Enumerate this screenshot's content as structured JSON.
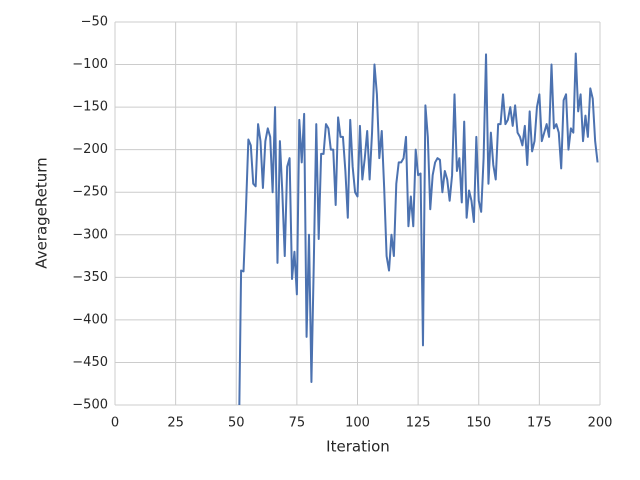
{
  "chart_data": {
    "type": "line",
    "xlabel": "Iteration",
    "ylabel": "AverageReturn",
    "xlim": [
      0,
      200
    ],
    "xticks": [
      0,
      25,
      50,
      75,
      100,
      125,
      150,
      175,
      200
    ],
    "ylim": [
      -500,
      -50
    ],
    "yticks": [
      {
        "value": -500,
        "label": "−500"
      },
      {
        "value": -450,
        "label": "−450"
      },
      {
        "value": -400,
        "label": "−400"
      },
      {
        "value": -350,
        "label": "−350"
      },
      {
        "value": -300,
        "label": "−300"
      },
      {
        "value": -250,
        "label": "−250"
      },
      {
        "value": -200,
        "label": "−200"
      },
      {
        "value": -150,
        "label": "−150"
      },
      {
        "value": -100,
        "label": "−100"
      },
      {
        "value": -50,
        "label": "−50"
      }
    ],
    "grid": true,
    "x": [
      51,
      52,
      53,
      54,
      55,
      56,
      57,
      58,
      59,
      60,
      61,
      62,
      63,
      64,
      65,
      66,
      67,
      68,
      69,
      70,
      71,
      72,
      73,
      74,
      75,
      76,
      77,
      78,
      79,
      80,
      81,
      82,
      83,
      84,
      85,
      86,
      87,
      88,
      89,
      90,
      91,
      92,
      93,
      94,
      95,
      96,
      97,
      98,
      99,
      100,
      101,
      102,
      103,
      104,
      105,
      106,
      107,
      108,
      109,
      110,
      111,
      112,
      113,
      114,
      115,
      116,
      117,
      118,
      119,
      120,
      121,
      122,
      123,
      124,
      125,
      126,
      127,
      128,
      129,
      130,
      131,
      132,
      133,
      134,
      135,
      136,
      137,
      138,
      139,
      140,
      141,
      142,
      143,
      144,
      145,
      146,
      147,
      148,
      149,
      150,
      151,
      152,
      153,
      154,
      155,
      156,
      157,
      158,
      159,
      160,
      161,
      162,
      163,
      164,
      165,
      166,
      167,
      168,
      169,
      170,
      171,
      172,
      173,
      174,
      175,
      176,
      177,
      178,
      179,
      180,
      181,
      182,
      183,
      184,
      185,
      186,
      187,
      188,
      189,
      190,
      191,
      192,
      193,
      194,
      195,
      196,
      197,
      198,
      199
    ],
    "series": [
      {
        "color": "#4c72b0",
        "values": [
          -560,
          -342,
          -343,
          -270,
          -188,
          -195,
          -240,
          -243,
          -170,
          -190,
          -245,
          -190,
          -175,
          -185,
          -250,
          -150,
          -333,
          -190,
          -250,
          -325,
          -220,
          -210,
          -352,
          -320,
          -370,
          -165,
          -215,
          -158,
          -420,
          -300,
          -473,
          -330,
          -170,
          -305,
          -205,
          -205,
          -170,
          -175,
          -200,
          -200,
          -265,
          -162,
          -185,
          -185,
          -225,
          -280,
          -165,
          -220,
          -250,
          -255,
          -172,
          -235,
          -210,
          -178,
          -235,
          -180,
          -100,
          -135,
          -210,
          -178,
          -245,
          -325,
          -342,
          -300,
          -325,
          -240,
          -215,
          -215,
          -210,
          -185,
          -290,
          -255,
          -290,
          -200,
          -230,
          -228,
          -430,
          -148,
          -185,
          -270,
          -230,
          -215,
          -210,
          -212,
          -250,
          -225,
          -235,
          -260,
          -230,
          -135,
          -225,
          -210,
          -262,
          -167,
          -280,
          -248,
          -260,
          -285,
          -185,
          -260,
          -273,
          -210,
          -88,
          -240,
          -180,
          -218,
          -235,
          -170,
          -170,
          -135,
          -170,
          -165,
          -150,
          -172,
          -148,
          -180,
          -185,
          -195,
          -172,
          -218,
          -155,
          -202,
          -190,
          -150,
          -135,
          -190,
          -180,
          -170,
          -185,
          -100,
          -175,
          -170,
          -180,
          -222,
          -142,
          -135,
          -200,
          -175,
          -180,
          -87,
          -155,
          -135,
          -190,
          -160,
          -185,
          -128,
          -140,
          -190,
          -215
        ]
      }
    ]
  }
}
